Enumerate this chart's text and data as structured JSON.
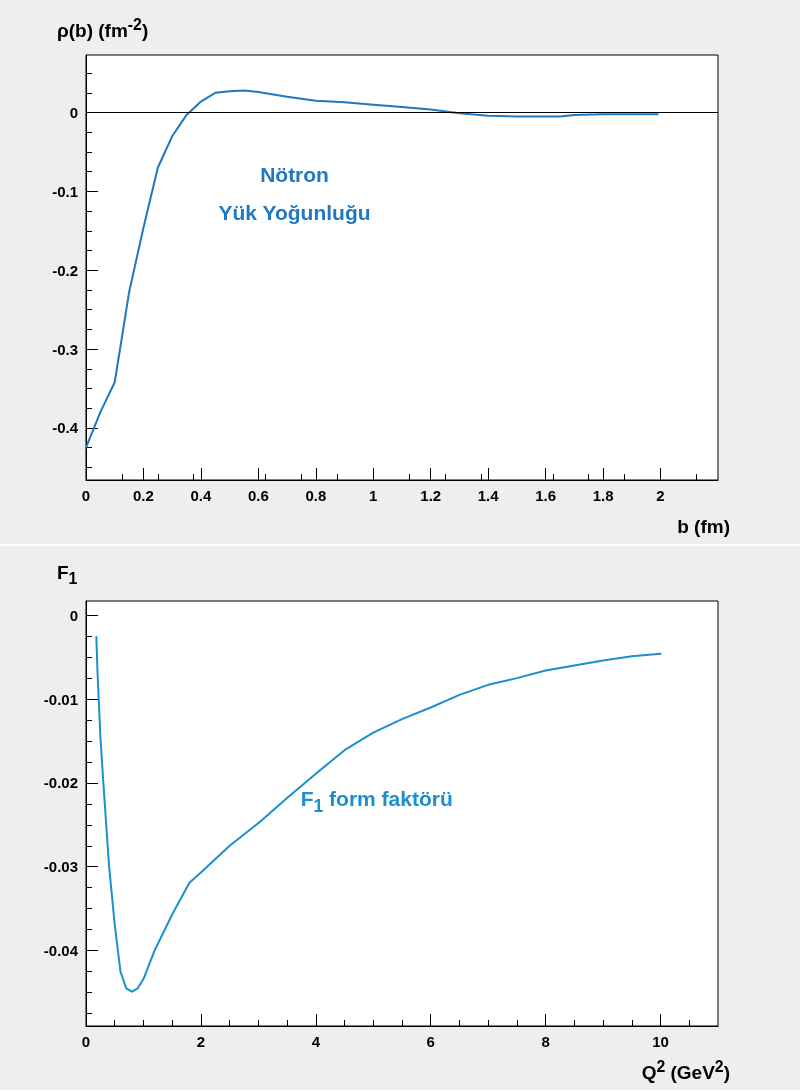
{
  "chart_data": [
    {
      "type": "line",
      "xlabel": "b (fm)",
      "ylabel": "ρ(b) (fm$^{-2}$)",
      "annotations": [
        "Nötron",
        "Yük Yoğunluğu"
      ],
      "series": [
        {
          "color": "#1f78c1",
          "x": [
            0,
            0.05,
            0.1,
            0.15,
            0.2,
            0.25,
            0.3,
            0.35,
            0.4,
            0.45,
            0.5,
            0.55,
            0.6,
            0.7,
            0.8,
            0.9,
            1.0,
            1.1,
            1.2,
            1.3,
            1.4,
            1.5,
            1.6,
            1.65,
            1.7,
            1.8,
            1.9,
            1.99
          ],
          "values": [
            -0.425,
            -0.38,
            -0.342,
            -0.228,
            -0.146,
            -0.07,
            -0.03,
            -0.003,
            0.014,
            0.025,
            0.027,
            0.028,
            0.026,
            0.02,
            0.015,
            0.013,
            0.01,
            0.007,
            0.004,
            -0.001,
            -0.004,
            -0.005,
            -0.005,
            -0.005,
            -0.003,
            -0.002,
            -0.002,
            -0.002
          ]
        }
      ],
      "xlim": [
        0,
        2.2
      ],
      "ylim": [
        -0.466,
        0.073
      ],
      "xticks": [
        0,
        0.2,
        0.4,
        0.6,
        0.8,
        1,
        1.2,
        1.4,
        1.6,
        1.8,
        2
      ],
      "yticks": [
        -0.4,
        -0.3,
        -0.2,
        -0.1,
        0
      ],
      "ref_lines": [
        {
          "axis": "y",
          "value": 0,
          "color": "#000000"
        }
      ],
      "grid": false,
      "marker": "none",
      "line_style": "solid"
    },
    {
      "type": "line",
      "xlabel": "Q$^{2}$ (GeV$^{2}$)",
      "ylabel": "F$_{1}$",
      "annotations": [
        "F$_{1}$  form faktörü"
      ],
      "series": [
        {
          "color": "#1b8fd0",
          "x": [
            0.18,
            0.2,
            0.25,
            0.3,
            0.4,
            0.5,
            0.6,
            0.7,
            0.8,
            0.9,
            1.0,
            1.2,
            1.5,
            1.8,
            2.0,
            2.5,
            3,
            3.5,
            4,
            4.5,
            5,
            5.5,
            6,
            6.5,
            7,
            7.5,
            8,
            8.5,
            9,
            9.5,
            10
          ],
          "values": [
            -0.0026,
            -0.0067,
            -0.0144,
            -0.0198,
            -0.0298,
            -0.0369,
            -0.0425,
            -0.0445,
            -0.0449,
            -0.0445,
            -0.0434,
            -0.0399,
            -0.0357,
            -0.0319,
            -0.0307,
            -0.0275,
            -0.0248,
            -0.0218,
            -0.0189,
            -0.0161,
            -0.014,
            -0.0124,
            -0.011,
            -0.0095,
            -0.0083,
            -0.0075,
            -0.0066,
            -0.006,
            -0.0054,
            -0.0049,
            -0.0046
          ]
        }
      ],
      "xlim": [
        0,
        11
      ],
      "ylim": [
        -0.049,
        0.0017
      ],
      "xticks": [
        0,
        2,
        4,
        6,
        8,
        10
      ],
      "yticks": [
        -0.04,
        -0.03,
        -0.02,
        -0.01,
        0
      ],
      "grid": false,
      "marker": "none",
      "line_style": "solid"
    }
  ]
}
